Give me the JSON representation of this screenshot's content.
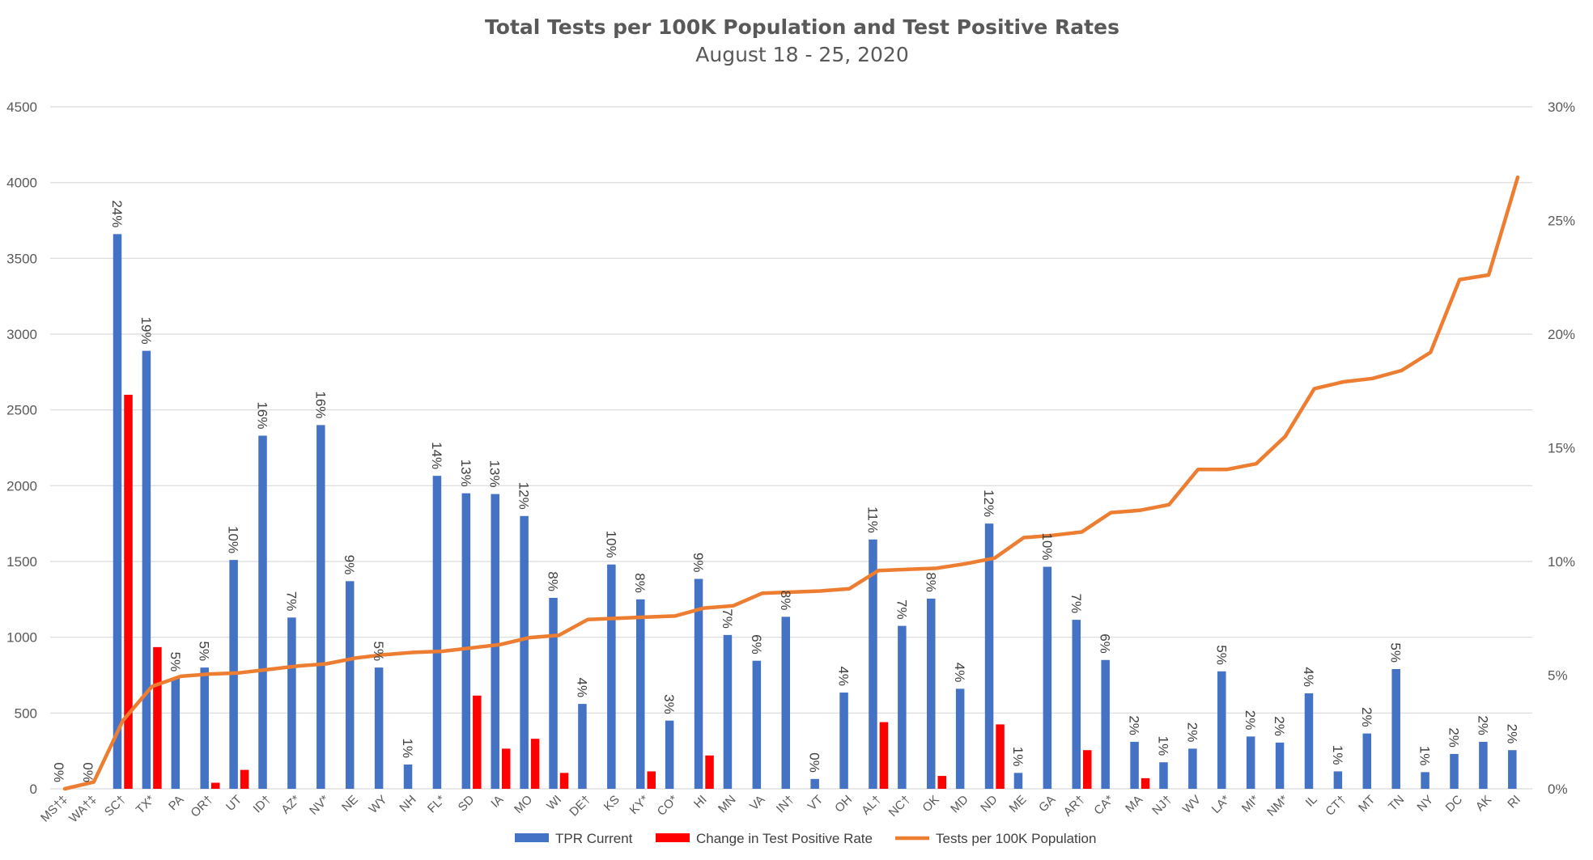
{
  "chart_data": {
    "type": "bar",
    "title": "Total Tests per 100K Population and Test Positive Rates",
    "subtitle": "August 18 - 25, 2020",
    "categories": [
      "MS†‡",
      "WA†‡",
      "SC†",
      "TX*",
      "PA",
      "OR†",
      "UT",
      "ID†",
      "AZ*",
      "NV*",
      "NE",
      "WY",
      "NH",
      "FL*",
      "SD",
      "IA",
      "MO",
      "WI",
      "DE†",
      "KS",
      "KY*",
      "CO*",
      "HI",
      "MN",
      "VA",
      "IN†",
      "VT",
      "OH",
      "AL†",
      "NC†",
      "OK",
      "MD",
      "ND",
      "ME",
      "GA",
      "AR†",
      "CA*",
      "MA",
      "NJ†",
      "WV",
      "LA*",
      "MI*",
      "NM*",
      "IL",
      "CT†",
      "MT",
      "TN",
      "NY",
      "DC",
      "AK",
      "RI"
    ],
    "y_left": {
      "min": 0,
      "max": 4500,
      "step": 500,
      "ticks": [
        "0",
        "500",
        "1000",
        "1500",
        "2000",
        "2500",
        "3000",
        "3500",
        "4000",
        "4500"
      ]
    },
    "y_right": {
      "min": 0,
      "max": 30,
      "ticks": [
        "0%",
        "5%",
        "10%",
        "15%",
        "20%",
        "25%",
        "30%"
      ]
    },
    "series": [
      {
        "name": "TPR Current",
        "color": "#4472c4",
        "axis": "left",
        "kind": "bar",
        "values": [
          0,
          0,
          3660,
          2890,
          730,
          800,
          1510,
          2330,
          1130,
          2400,
          1370,
          800,
          160,
          2065,
          1950,
          1945,
          1800,
          1260,
          560,
          1480,
          1250,
          450,
          1385,
          1015,
          845,
          1135,
          65,
          635,
          1645,
          1075,
          1255,
          660,
          1750,
          105,
          1465,
          1115,
          850,
          310,
          175,
          265,
          775,
          345,
          305,
          630,
          115,
          365,
          790,
          110,
          230,
          310,
          255
        ],
        "labels": [
          "0%",
          "0%",
          "24%",
          "19%",
          "5%",
          "5%",
          "10%",
          "16%",
          "7%",
          "16%",
          "9%",
          "5%",
          "1%",
          "14%",
          "13%",
          "13%",
          "12%",
          "8%",
          "4%",
          "10%",
          "8%",
          "3%",
          "9%",
          "7%",
          "6%",
          "8%",
          "0%",
          "4%",
          "11%",
          "7%",
          "8%",
          "4%",
          "12%",
          "1%",
          "10%",
          "7%",
          "6%",
          "2%",
          "1%",
          "2%",
          "5%",
          "2%",
          "2%",
          "4%",
          "1%",
          "2%",
          "5%",
          "1%",
          "2%",
          "2%",
          "2%"
        ]
      },
      {
        "name": "Change in Test Positive Rate",
        "color": "#ff0000",
        "axis": "left",
        "kind": "bar",
        "values": [
          0,
          0,
          2600,
          935,
          0,
          40,
          125,
          0,
          0,
          0,
          0,
          0,
          0,
          0,
          615,
          265,
          330,
          105,
          0,
          0,
          115,
          0,
          220,
          0,
          0,
          0,
          0,
          0,
          440,
          0,
          85,
          0,
          425,
          0,
          0,
          255,
          0,
          70,
          0,
          0,
          0,
          0,
          0,
          0,
          0,
          0,
          0,
          0,
          0,
          0,
          0
        ]
      },
      {
        "name": "Tests per 100K Population",
        "color": "#ed7d31",
        "axis": "right",
        "kind": "line",
        "values": [
          0,
          0.3,
          3.0,
          4.5,
          4.95,
          5.05,
          5.1,
          5.25,
          5.4,
          5.5,
          5.75,
          5.9,
          6.0,
          6.05,
          6.2,
          6.35,
          6.65,
          6.75,
          7.45,
          7.5,
          7.55,
          7.6,
          7.95,
          8.05,
          8.6,
          8.65,
          8.7,
          8.8,
          9.6,
          9.65,
          9.7,
          9.9,
          10.15,
          11.05,
          11.15,
          11.3,
          12.15,
          12.25,
          12.5,
          14.05,
          14.05,
          14.3,
          15.5,
          17.6,
          17.9,
          18.05,
          18.4,
          19.2,
          22.4,
          22.6,
          26.9
        ]
      }
    ],
    "legend_position": "bottom",
    "grid": true
  }
}
